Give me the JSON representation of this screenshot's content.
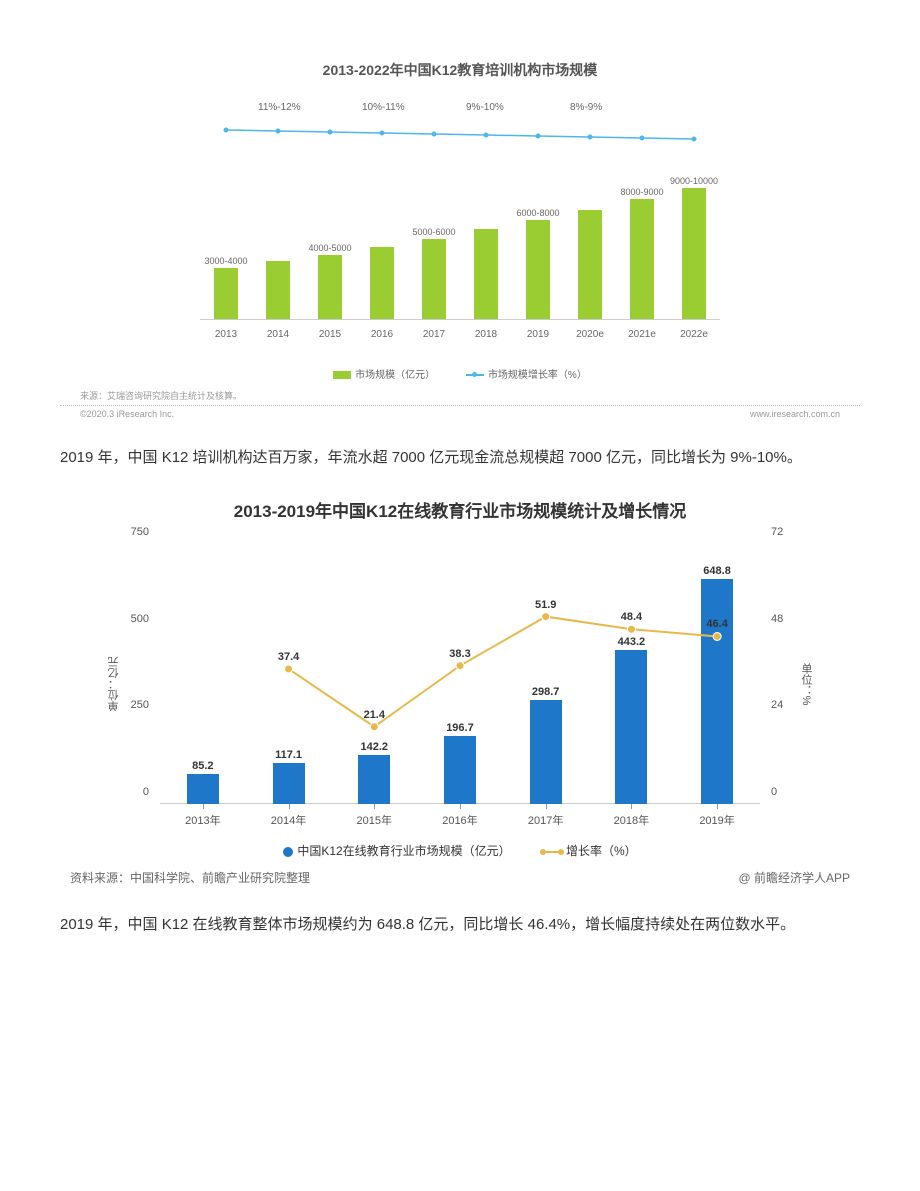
{
  "chart1": {
    "title": "2013-2022年中国K12教育培训机构市场规模",
    "years": [
      "2013",
      "2014",
      "2015",
      "2016",
      "2017",
      "2018",
      "2019",
      "2020e",
      "2021e",
      "2022e"
    ],
    "bar_labels": [
      "3000-4000",
      "",
      "4000-5000",
      "",
      "5000-6000",
      "",
      "6000-8000",
      "",
      "8000-9000",
      "9000-10000"
    ],
    "bar_label_positions": [
      0,
      null,
      1,
      null,
      3,
      null,
      5,
      null,
      7,
      9
    ],
    "bar_heights_pct": [
      32,
      36,
      40,
      45,
      50,
      56,
      62,
      68,
      75,
      82
    ],
    "bar_color": "#9acd32",
    "line_labels": [
      "11%-12%",
      "10%-11%",
      "9%-10%",
      "8%-9%"
    ],
    "line_label_x_idx": [
      1,
      3,
      5,
      7
    ],
    "line_color": "#4db8e8",
    "line_y": [
      30,
      31,
      32,
      33,
      34,
      35,
      36,
      37,
      38,
      39
    ],
    "legend_bar": "市场规模（亿元）",
    "legend_line": "市场规模增长率（%）",
    "source": "来源：艾瑞咨询研究院自主统计及核算。",
    "copyright_left": "©2020.3 iResearch Inc.",
    "copyright_right": "www.iresearch.com.cn"
  },
  "paragraph1": "2019 年，中国 K12 培训机构达百万家，年流水超 7000 亿元现金流总规模超 7000 亿元，同比增长为 9%-10%。",
  "chart2": {
    "title": "2013-2019年中国K12在线教育行业市场规模统计及增长情况",
    "years": [
      "2013年",
      "2014年",
      "2015年",
      "2016年",
      "2017年",
      "2018年",
      "2019年"
    ],
    "bar_values": [
      85.2,
      117.1,
      142.2,
      196.7,
      298.7,
      443.2,
      648.8
    ],
    "line_values": [
      null,
      37.4,
      21.4,
      38.3,
      51.9,
      48.4,
      46.4
    ],
    "bar_color": "#1f77c9",
    "line_color": "#e8b84a",
    "y_left_max": 750,
    "y_left_ticks": [
      0,
      250,
      500,
      750
    ],
    "y_right_max": 72,
    "y_right_ticks": [
      0,
      24,
      48,
      72
    ],
    "y_left_label": "单位：亿元",
    "y_right_label": "单位：%",
    "legend_bar": "中国K12在线教育行业市场规模（亿元）",
    "legend_line": "增长率（%）",
    "source_left": "资料来源：中国科学院、前瞻产业研究院整理",
    "source_right": "@ 前瞻经济学人APP"
  },
  "paragraph2": "2019 年，中国 K12 在线教育整体市场规模约为 648.8 亿元，同比增长 46.4%，增长幅度持续处在两位数水平。"
}
